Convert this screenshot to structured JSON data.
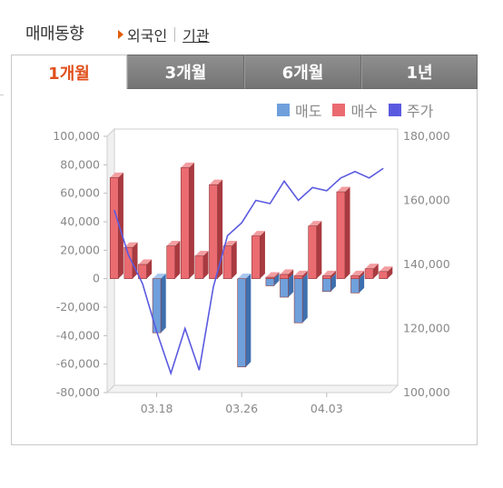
{
  "header": {
    "title": "매매동향",
    "tab_foreign": "외국인",
    "tab_institution": "기관"
  },
  "tabs": [
    {
      "label": "1개월",
      "active": true
    },
    {
      "label": "3개월",
      "active": false
    },
    {
      "label": "6개월",
      "active": false
    },
    {
      "label": "1년",
      "active": false
    }
  ],
  "legend": [
    {
      "label": "매도",
      "color": "#6fa0dc"
    },
    {
      "label": "매수",
      "color": "#ea6b70"
    },
    {
      "label": "주가",
      "color": "#5a5ae0"
    }
  ],
  "chart_data": {
    "type": "bar",
    "x_tick_labels": [
      "03.18",
      "03.26",
      "04.03"
    ],
    "y_left_ticks": [
      "100,000",
      "80,000",
      "60,000",
      "40,000",
      "20,000",
      "0",
      "-20,000",
      "-40,000",
      "-60,000",
      "-80,000"
    ],
    "y_right_ticks": [
      "180,000",
      "160,000",
      "140,000",
      "120,000",
      "100,000"
    ],
    "ylim_left": [
      -80000,
      100000
    ],
    "ylim_right": [
      100000,
      180000
    ],
    "series": [
      {
        "name": "매도",
        "axis": "left",
        "values": [
          0,
          0,
          0,
          -38000,
          0,
          0,
          0,
          0,
          0,
          -62000,
          0,
          -5000,
          -13000,
          -31000,
          0,
          -9000,
          0,
          -10000,
          0,
          0
        ]
      },
      {
        "name": "매수",
        "axis": "left",
        "values": [
          71000,
          22000,
          10000,
          0,
          23000,
          78000,
          16000,
          66000,
          23000,
          0,
          30000,
          1000,
          3000,
          2000,
          37000,
          2000,
          61000,
          2000,
          7000,
          5000
        ]
      },
      {
        "name": "주가",
        "axis": "right",
        "type": "line",
        "values": [
          157000,
          143000,
          134000,
          119000,
          106000,
          120000,
          107000,
          133000,
          149000,
          153000,
          160000,
          159000,
          166000,
          160000,
          164000,
          163000,
          167000,
          169000,
          167000,
          170000
        ]
      }
    ]
  }
}
